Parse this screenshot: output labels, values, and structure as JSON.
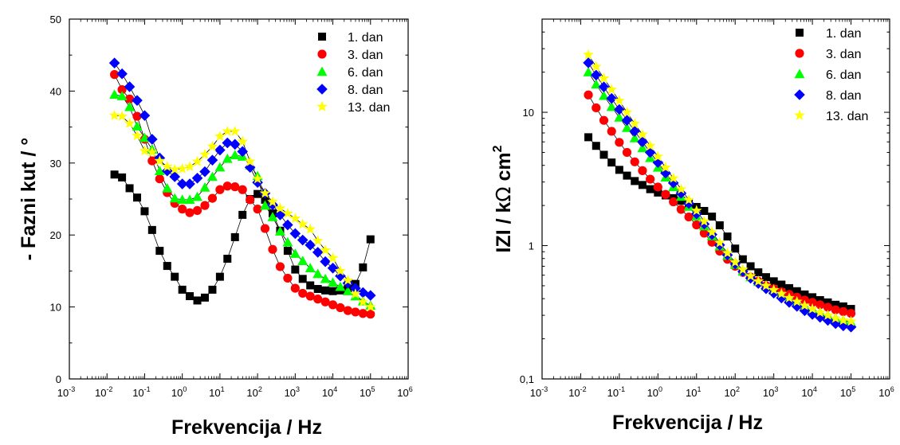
{
  "chart_data": [
    {
      "type": "scatter",
      "xscale": "log",
      "yscale": "linear",
      "xlim": [
        0.001,
        1000000
      ],
      "ylim": [
        0,
        50
      ],
      "xlabel": "Frekvencija / Hz",
      "ylabel": "- Fazni kut / °",
      "x_tick_labels": [
        {
          "base": "10",
          "exp": "-3"
        },
        {
          "base": "10",
          "exp": "-2"
        },
        {
          "base": "10",
          "exp": "-1"
        },
        {
          "base": "10",
          "exp": "0"
        },
        {
          "base": "10",
          "exp": "1"
        },
        {
          "base": "10",
          "exp": "2"
        },
        {
          "base": "10",
          "exp": "3"
        },
        {
          "base": "10",
          "exp": "4"
        },
        {
          "base": "10",
          "exp": "5"
        },
        {
          "base": "10",
          "exp": "6"
        }
      ],
      "y_tick_labels": [
        "0",
        "10",
        "20",
        "30",
        "40",
        "50"
      ],
      "legend_position": "top-right",
      "fit_lines": true,
      "x": [
        0.0158,
        0.0251,
        0.0398,
        0.0631,
        0.1,
        0.158,
        0.251,
        0.398,
        0.631,
        1.0,
        1.58,
        2.51,
        3.98,
        6.31,
        10,
        15.8,
        25.1,
        39.8,
        63.1,
        100,
        158,
        251,
        398,
        631,
        1000,
        1580,
        2510,
        3980,
        6310,
        10000,
        15800,
        25100,
        39800,
        63100,
        100000
      ],
      "series": [
        {
          "name": "1. dan",
          "marker": "square",
          "color": "#000000",
          "values": [
            28.4,
            28.0,
            26.5,
            25.2,
            23.3,
            20.7,
            17.8,
            15.7,
            14.2,
            12.4,
            11.5,
            10.9,
            11.3,
            12.4,
            14.2,
            16.7,
            19.7,
            22.8,
            25.0,
            25.7,
            24.9,
            23.0,
            20.6,
            17.8,
            15.2,
            13.9,
            13.0,
            12.5,
            12.3,
            12.2,
            12.3,
            12.5,
            13.2,
            15.5,
            19.4
          ]
        },
        {
          "name": "3. dan",
          "marker": "circle",
          "color": "#ff0000",
          "values": [
            42.3,
            40.2,
            38.9,
            36.5,
            33.3,
            30.3,
            27.8,
            25.9,
            24.4,
            23.6,
            23.1,
            23.4,
            24.1,
            25.1,
            26.3,
            26.8,
            26.7,
            26.3,
            24.9,
            23.6,
            20.9,
            18.0,
            15.6,
            14.0,
            12.6,
            11.9,
            11.5,
            11.1,
            10.7,
            10.3,
            9.9,
            9.5,
            9.3,
            9.1,
            9.0
          ]
        },
        {
          "name": "6. dan",
          "marker": "triangle",
          "color": "#00ff00",
          "values": [
            39.5,
            39.3,
            37.8,
            35.1,
            33.5,
            31.9,
            28.9,
            26.5,
            25.1,
            24.9,
            24.9,
            25.3,
            26.6,
            28.1,
            29.4,
            30.6,
            31.1,
            30.9,
            29.7,
            28.2,
            24.1,
            22.5,
            20.5,
            19.0,
            17.4,
            16.4,
            15.4,
            14.6,
            13.9,
            13.4,
            12.8,
            12.2,
            11.5,
            10.8,
            10.2
          ]
        },
        {
          "name": "8. dan",
          "marker": "diamond",
          "color": "#0000ff",
          "values": [
            43.9,
            42.4,
            40.6,
            38.7,
            36.6,
            33.3,
            30.7,
            28.9,
            28.1,
            27.1,
            27.1,
            27.9,
            28.8,
            30.4,
            31.8,
            32.8,
            32.6,
            31.6,
            29.4,
            27.3,
            25.8,
            24.2,
            22.8,
            21.4,
            20.2,
            19.3,
            18.6,
            17.6,
            16.3,
            15.4,
            14.3,
            13.3,
            12.6,
            12.0,
            11.6
          ]
        },
        {
          "name": "13. dan",
          "marker": "star",
          "color": "#ffff00",
          "values": [
            36.6,
            36.5,
            35.5,
            33.8,
            31.7,
            31.5,
            30.3,
            29.5,
            29.1,
            29.2,
            29.5,
            30.2,
            31.2,
            32.3,
            33.7,
            34.4,
            34.4,
            33.0,
            30.2,
            27.8,
            25.8,
            24.6,
            23.7,
            23.0,
            22.3,
            21.5,
            20.8,
            19.2,
            17.9,
            16.8,
            15.0,
            13.7,
            11.8,
            10.7,
            10.0
          ]
        }
      ]
    },
    {
      "type": "scatter",
      "xscale": "log",
      "yscale": "log",
      "xlim": [
        0.001,
        1000000
      ],
      "ylim": [
        0.1,
        50
      ],
      "xlabel": "Frekvencija / Hz",
      "ylabel": "IZI / kΩ cm²",
      "ylabel_parts": {
        "main": "IZI / k",
        "omega": "Ω",
        "unit": " cm",
        "sup": "2"
      },
      "x_tick_labels": [
        {
          "base": "10",
          "exp": "-3"
        },
        {
          "base": "10",
          "exp": "-2"
        },
        {
          "base": "10",
          "exp": "-1"
        },
        {
          "base": "10",
          "exp": "0"
        },
        {
          "base": "10",
          "exp": "1"
        },
        {
          "base": "10",
          "exp": "2"
        },
        {
          "base": "10",
          "exp": "3"
        },
        {
          "base": "10",
          "exp": "4"
        },
        {
          "base": "10",
          "exp": "5"
        },
        {
          "base": "10",
          "exp": "6"
        }
      ],
      "y_tick_labels": [
        "0,1",
        "1",
        "10"
      ],
      "y_tick_values": [
        0.1,
        1,
        10
      ],
      "legend_position": "top-right",
      "fit_lines": true,
      "x": [
        0.0158,
        0.0251,
        0.0398,
        0.0631,
        0.1,
        0.158,
        0.251,
        0.398,
        0.631,
        1.0,
        1.58,
        2.51,
        3.98,
        6.31,
        10,
        15.8,
        25.1,
        39.8,
        63.1,
        100,
        158,
        251,
        398,
        631,
        1000,
        1580,
        2510,
        3980,
        6310,
        10000,
        15800,
        25100,
        39800,
        63100,
        100000
      ],
      "series": [
        {
          "name": "1. dan",
          "marker": "square",
          "color": "#000000",
          "values": [
            6.5,
            5.6,
            4.8,
            4.2,
            3.7,
            3.35,
            3.05,
            2.85,
            2.65,
            2.5,
            2.38,
            2.27,
            2.17,
            2.07,
            1.95,
            1.82,
            1.65,
            1.42,
            1.17,
            0.95,
            0.79,
            0.7,
            0.63,
            0.58,
            0.54,
            0.51,
            0.48,
            0.455,
            0.43,
            0.41,
            0.39,
            0.375,
            0.36,
            0.35,
            0.335
          ]
        },
        {
          "name": "3. dan",
          "marker": "circle",
          "color": "#ff0000",
          "values": [
            13.5,
            10.8,
            8.7,
            7.2,
            5.95,
            5.0,
            4.25,
            3.65,
            3.15,
            2.75,
            2.42,
            2.13,
            1.87,
            1.64,
            1.43,
            1.24,
            1.06,
            0.91,
            0.79,
            0.7,
            0.63,
            0.58,
            0.54,
            0.5,
            0.475,
            0.45,
            0.43,
            0.41,
            0.39,
            0.375,
            0.36,
            0.345,
            0.33,
            0.32,
            0.31
          ]
        },
        {
          "name": "6. dan",
          "marker": "triangle",
          "color": "#00ff00",
          "values": [
            20.0,
            16.2,
            13.3,
            11.0,
            9.15,
            7.65,
            6.4,
            5.4,
            4.55,
            3.85,
            3.25,
            2.75,
            2.33,
            1.96,
            1.66,
            1.4,
            1.18,
            0.99,
            0.84,
            0.72,
            0.64,
            0.58,
            0.535,
            0.495,
            0.46,
            0.43,
            0.4,
            0.375,
            0.35,
            0.33,
            0.315,
            0.3,
            0.285,
            0.275,
            0.265
          ]
        },
        {
          "name": "8. dan",
          "marker": "diamond",
          "color": "#0000ff",
          "values": [
            23.5,
            19.0,
            15.5,
            12.7,
            10.5,
            8.7,
            7.2,
            6.0,
            5.0,
            4.2,
            3.5,
            2.95,
            2.47,
            2.07,
            1.73,
            1.45,
            1.21,
            1.01,
            0.85,
            0.73,
            0.64,
            0.57,
            0.52,
            0.475,
            0.44,
            0.405,
            0.375,
            0.35,
            0.325,
            0.305,
            0.29,
            0.275,
            0.26,
            0.25,
            0.245
          ]
        },
        {
          "name": "13. dan",
          "marker": "star",
          "color": "#ffff00",
          "values": [
            27.0,
            22.0,
            18.0,
            14.8,
            12.2,
            10.0,
            8.2,
            6.8,
            5.6,
            4.65,
            3.85,
            3.2,
            2.65,
            2.2,
            1.83,
            1.52,
            1.26,
            1.05,
            0.88,
            0.75,
            0.66,
            0.59,
            0.54,
            0.5,
            0.465,
            0.435,
            0.405,
            0.38,
            0.355,
            0.335,
            0.315,
            0.3,
            0.285,
            0.275,
            0.27
          ]
        }
      ]
    }
  ]
}
